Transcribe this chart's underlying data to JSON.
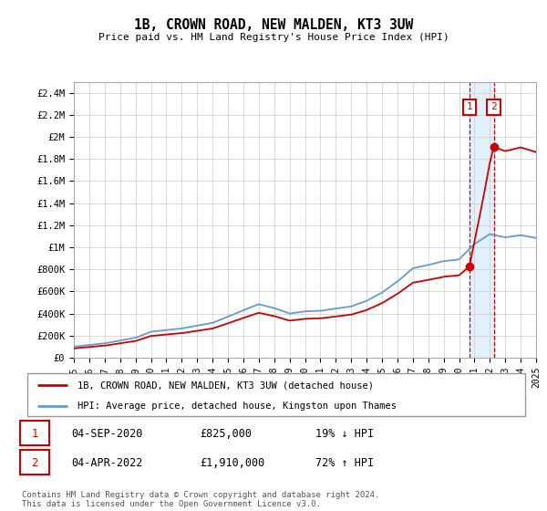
{
  "title": "1B, CROWN ROAD, NEW MALDEN, KT3 3UW",
  "subtitle": "Price paid vs. HM Land Registry's House Price Index (HPI)",
  "ylabel_ticks": [
    "£0",
    "£200K",
    "£400K",
    "£600K",
    "£800K",
    "£1M",
    "£1.2M",
    "£1.4M",
    "£1.6M",
    "£1.8M",
    "£2M",
    "£2.2M",
    "£2.4M"
  ],
  "ytick_values": [
    0,
    200000,
    400000,
    600000,
    800000,
    1000000,
    1200000,
    1400000,
    1600000,
    1800000,
    2000000,
    2200000,
    2400000
  ],
  "ylim": [
    0,
    2500000
  ],
  "xlim_start": 1995,
  "xlim_end": 2025,
  "xticks": [
    1995,
    1996,
    1997,
    1998,
    1999,
    2000,
    2001,
    2002,
    2003,
    2004,
    2005,
    2006,
    2007,
    2008,
    2009,
    2010,
    2011,
    2012,
    2013,
    2014,
    2015,
    2016,
    2017,
    2018,
    2019,
    2020,
    2021,
    2022,
    2023,
    2024,
    2025
  ],
  "hpi_color": "#6699cc",
  "price_color": "#cc0000",
  "annotation_box_color": "#cc0000",
  "shade_color": "#ddeeff",
  "transaction1_x": 2020.67,
  "transaction2_x": 2022.25,
  "transaction1_price": 825000,
  "transaction2_price": 1910000,
  "legend_line1": "1B, CROWN ROAD, NEW MALDEN, KT3 3UW (detached house)",
  "legend_line2": "HPI: Average price, detached house, Kingston upon Thames",
  "table_row1": [
    "1",
    "04-SEP-2020",
    "£825,000",
    "19% ↓ HPI"
  ],
  "table_row2": [
    "2",
    "04-APR-2022",
    "£1,910,000",
    "72% ↑ HPI"
  ],
  "footnote": "Contains HM Land Registry data © Crown copyright and database right 2024.\nThis data is licensed under the Open Government Licence v3.0.",
  "background_color": "#ffffff",
  "grid_color": "#cccccc"
}
